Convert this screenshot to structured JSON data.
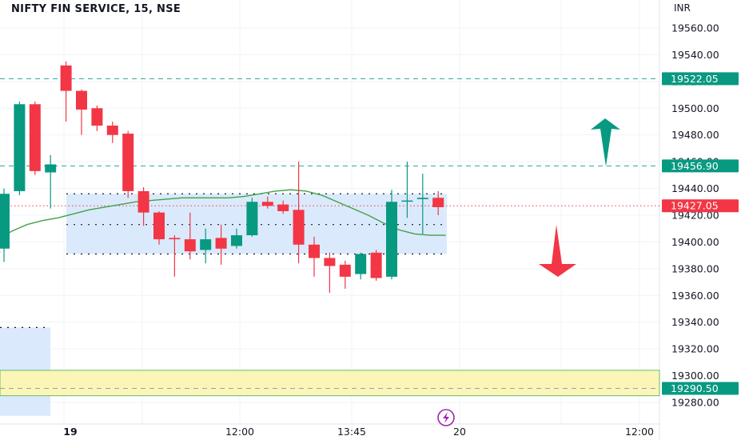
{
  "header": {
    "title": "NIFTY FIN SERVICE, 15, NSE",
    "currency": "INR"
  },
  "colors": {
    "up": "#089981",
    "down": "#f23645",
    "ma": "#43a047",
    "range_box": "#d4e6fb",
    "support_zone": "#fbf6b8",
    "grid": "#f0f3fa",
    "level_line": "#26a69a"
  },
  "chart_data": {
    "type": "candlestick",
    "title": "NIFTY FIN SERVICE, 15, NSE",
    "y_axis": {
      "unit": "INR",
      "range": [
        19270,
        19570
      ],
      "ticks": [
        19560,
        19540,
        19520,
        19500,
        19480,
        19460,
        19440,
        19420,
        19400,
        19380,
        19360,
        19340,
        19320,
        19300,
        19280
      ]
    },
    "x_axis": {
      "ticks": [
        "19",
        "12:00",
        "13:45",
        "20",
        "12:00"
      ]
    },
    "price_tags": [
      {
        "value": "19522.05",
        "color": "#089981"
      },
      {
        "value": "19456.90",
        "color": "#089981"
      },
      {
        "value": "19427.05",
        "color": "#f23645"
      },
      {
        "value": "19290.50",
        "color": "#089981"
      }
    ],
    "candles": [
      {
        "o": 19395,
        "h": 19440,
        "l": 19385,
        "c": 19436
      },
      {
        "o": 19438,
        "h": 19505,
        "l": 19435,
        "c": 19503
      },
      {
        "o": 19503,
        "h": 19505,
        "l": 19450,
        "c": 19453
      },
      {
        "o": 19452,
        "h": 19465,
        "l": 19425,
        "c": 19458
      },
      {
        "o": 19532,
        "h": 19535,
        "l": 19490,
        "c": 19513
      },
      {
        "o": 19513,
        "h": 19514,
        "l": 19480,
        "c": 19499
      },
      {
        "o": 19500,
        "h": 19502,
        "l": 19483,
        "c": 19487
      },
      {
        "o": 19487,
        "h": 19490,
        "l": 19474,
        "c": 19480
      },
      {
        "o": 19481,
        "h": 19483,
        "l": 19433,
        "c": 19438
      },
      {
        "o": 19438,
        "h": 19441,
        "l": 19412,
        "c": 19422
      },
      {
        "o": 19422,
        "h": 19423,
        "l": 19398,
        "c": 19402
      },
      {
        "o": 19403,
        "h": 19405,
        "l": 19374,
        "c": 19402
      },
      {
        "o": 19402,
        "h": 19422,
        "l": 19387,
        "c": 19393
      },
      {
        "o": 19394,
        "h": 19410,
        "l": 19384,
        "c": 19402
      },
      {
        "o": 19403,
        "h": 19413,
        "l": 19383,
        "c": 19395
      },
      {
        "o": 19397,
        "h": 19410,
        "l": 19395,
        "c": 19405
      },
      {
        "o": 19405,
        "h": 19433,
        "l": 19404,
        "c": 19430
      },
      {
        "o": 19430,
        "h": 19434,
        "l": 19425,
        "c": 19427
      },
      {
        "o": 19428,
        "h": 19431,
        "l": 19421,
        "c": 19423
      },
      {
        "o": 19424,
        "h": 19460,
        "l": 19384,
        "c": 19398
      },
      {
        "o": 19398,
        "h": 19404,
        "l": 19374,
        "c": 19388
      },
      {
        "o": 19388,
        "h": 19392,
        "l": 19362,
        "c": 19382
      },
      {
        "o": 19383,
        "h": 19386,
        "l": 19365,
        "c": 19374
      },
      {
        "o": 19376,
        "h": 19392,
        "l": 19372,
        "c": 19391
      },
      {
        "o": 19392,
        "h": 19394,
        "l": 19371,
        "c": 19373
      },
      {
        "o": 19374,
        "h": 19439,
        "l": 19372,
        "c": 19430
      },
      {
        "o": 19431,
        "h": 19460,
        "l": 19418,
        "c": 19431
      },
      {
        "o": 19432,
        "h": 19451,
        "l": 19406,
        "c": 19433
      },
      {
        "o": 19433,
        "h": 19438,
        "l": 19420,
        "c": 19426
      }
    ],
    "moving_average": [
      19400,
      19408,
      19413,
      19416,
      19418,
      19421,
      19424,
      19426,
      19428,
      19430,
      19431,
      19432,
      19433,
      19433,
      19433,
      19433,
      19434,
      19436,
      19438,
      19439,
      19438,
      19435,
      19430,
      19425,
      19420,
      19414,
      19409,
      19406,
      19405,
      19405
    ],
    "levels": [
      19522.05,
      19456.9,
      19427.05
    ],
    "range_box": {
      "top": 19436,
      "bottom": 19391
    },
    "left_box": {
      "top": 19336,
      "bottom": 19270
    },
    "support_zone": {
      "top": 19304,
      "bottom": 19285
    },
    "support_level": 19290.5
  }
}
